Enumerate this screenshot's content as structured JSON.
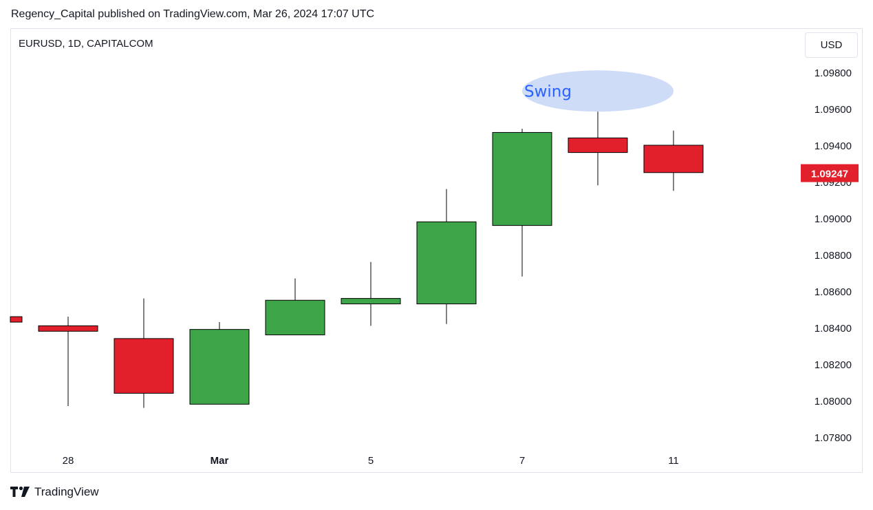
{
  "header": {
    "credit": "Regency_Capital published on TradingView.com, Mar 26, 2024 17:07 UTC"
  },
  "symbol": "EURUSD, 1D, CAPITALCOM",
  "currency": "USD",
  "brand": {
    "name": "TradingView",
    "icon": "tradingview-logo-icon"
  },
  "colors": {
    "up": "#3da548",
    "down": "#e2202b",
    "grid": "#ffffff",
    "annotation": "#cfdcf7",
    "annotation_text": "#2962ff"
  },
  "chart_data": {
    "type": "candlestick",
    "y_axis": {
      "ticks": [
        1.098,
        1.096,
        1.094,
        1.092,
        1.09,
        1.088,
        1.086,
        1.084,
        1.082,
        1.08,
        1.078
      ],
      "tick_labels": [
        "1.09800",
        "1.09600",
        "1.09400",
        "1.09200",
        "1.09000",
        "1.08800",
        "1.08600",
        "1.08400",
        "1.08200",
        "1.08000",
        "1.07800"
      ],
      "ylim": [
        1.0766,
        1.0998
      ]
    },
    "x_axis": {
      "labels": [
        {
          "text": "28",
          "index": 1
        },
        {
          "text": "Mar",
          "index": 3
        },
        {
          "text": "5",
          "index": 5
        },
        {
          "text": "7",
          "index": 7
        },
        {
          "text": "11",
          "index": 9
        }
      ]
    },
    "candles": [
      {
        "index": 0,
        "open": 1.0846,
        "close": 1.0843,
        "high": 1.0846,
        "low": 1.0843
      },
      {
        "index": 1,
        "open": 1.0841,
        "close": 1.0838,
        "high": 1.0846,
        "low": 1.0797
      },
      {
        "index": 2,
        "open": 1.0834,
        "close": 1.0804,
        "high": 1.0856,
        "low": 1.0796
      },
      {
        "index": 3,
        "open": 1.0798,
        "close": 1.0839,
        "high": 1.0843,
        "low": 1.0798
      },
      {
        "index": 4,
        "open": 1.0836,
        "close": 1.0855,
        "high": 1.0867,
        "low": 1.0836
      },
      {
        "index": 5,
        "open": 1.0853,
        "close": 1.0856,
        "high": 1.0876,
        "low": 1.0841
      },
      {
        "index": 6,
        "open": 1.0853,
        "close": 1.0898,
        "high": 1.0916,
        "low": 1.0842
      },
      {
        "index": 7,
        "open": 1.0896,
        "close": 1.0947,
        "high": 1.0949,
        "low": 1.0868
      },
      {
        "index": 8,
        "open": 1.0944,
        "close": 1.0936,
        "high": 1.0981,
        "low": 1.0918
      },
      {
        "index": 9,
        "open": 1.094,
        "close": 1.0925,
        "high": 1.0948,
        "low": 1.0915
      }
    ],
    "last_price": {
      "value": 1.09247,
      "label": "1.09247"
    },
    "annotation": {
      "text": "Swing",
      "near_index": 8,
      "value": 1.0975
    }
  }
}
